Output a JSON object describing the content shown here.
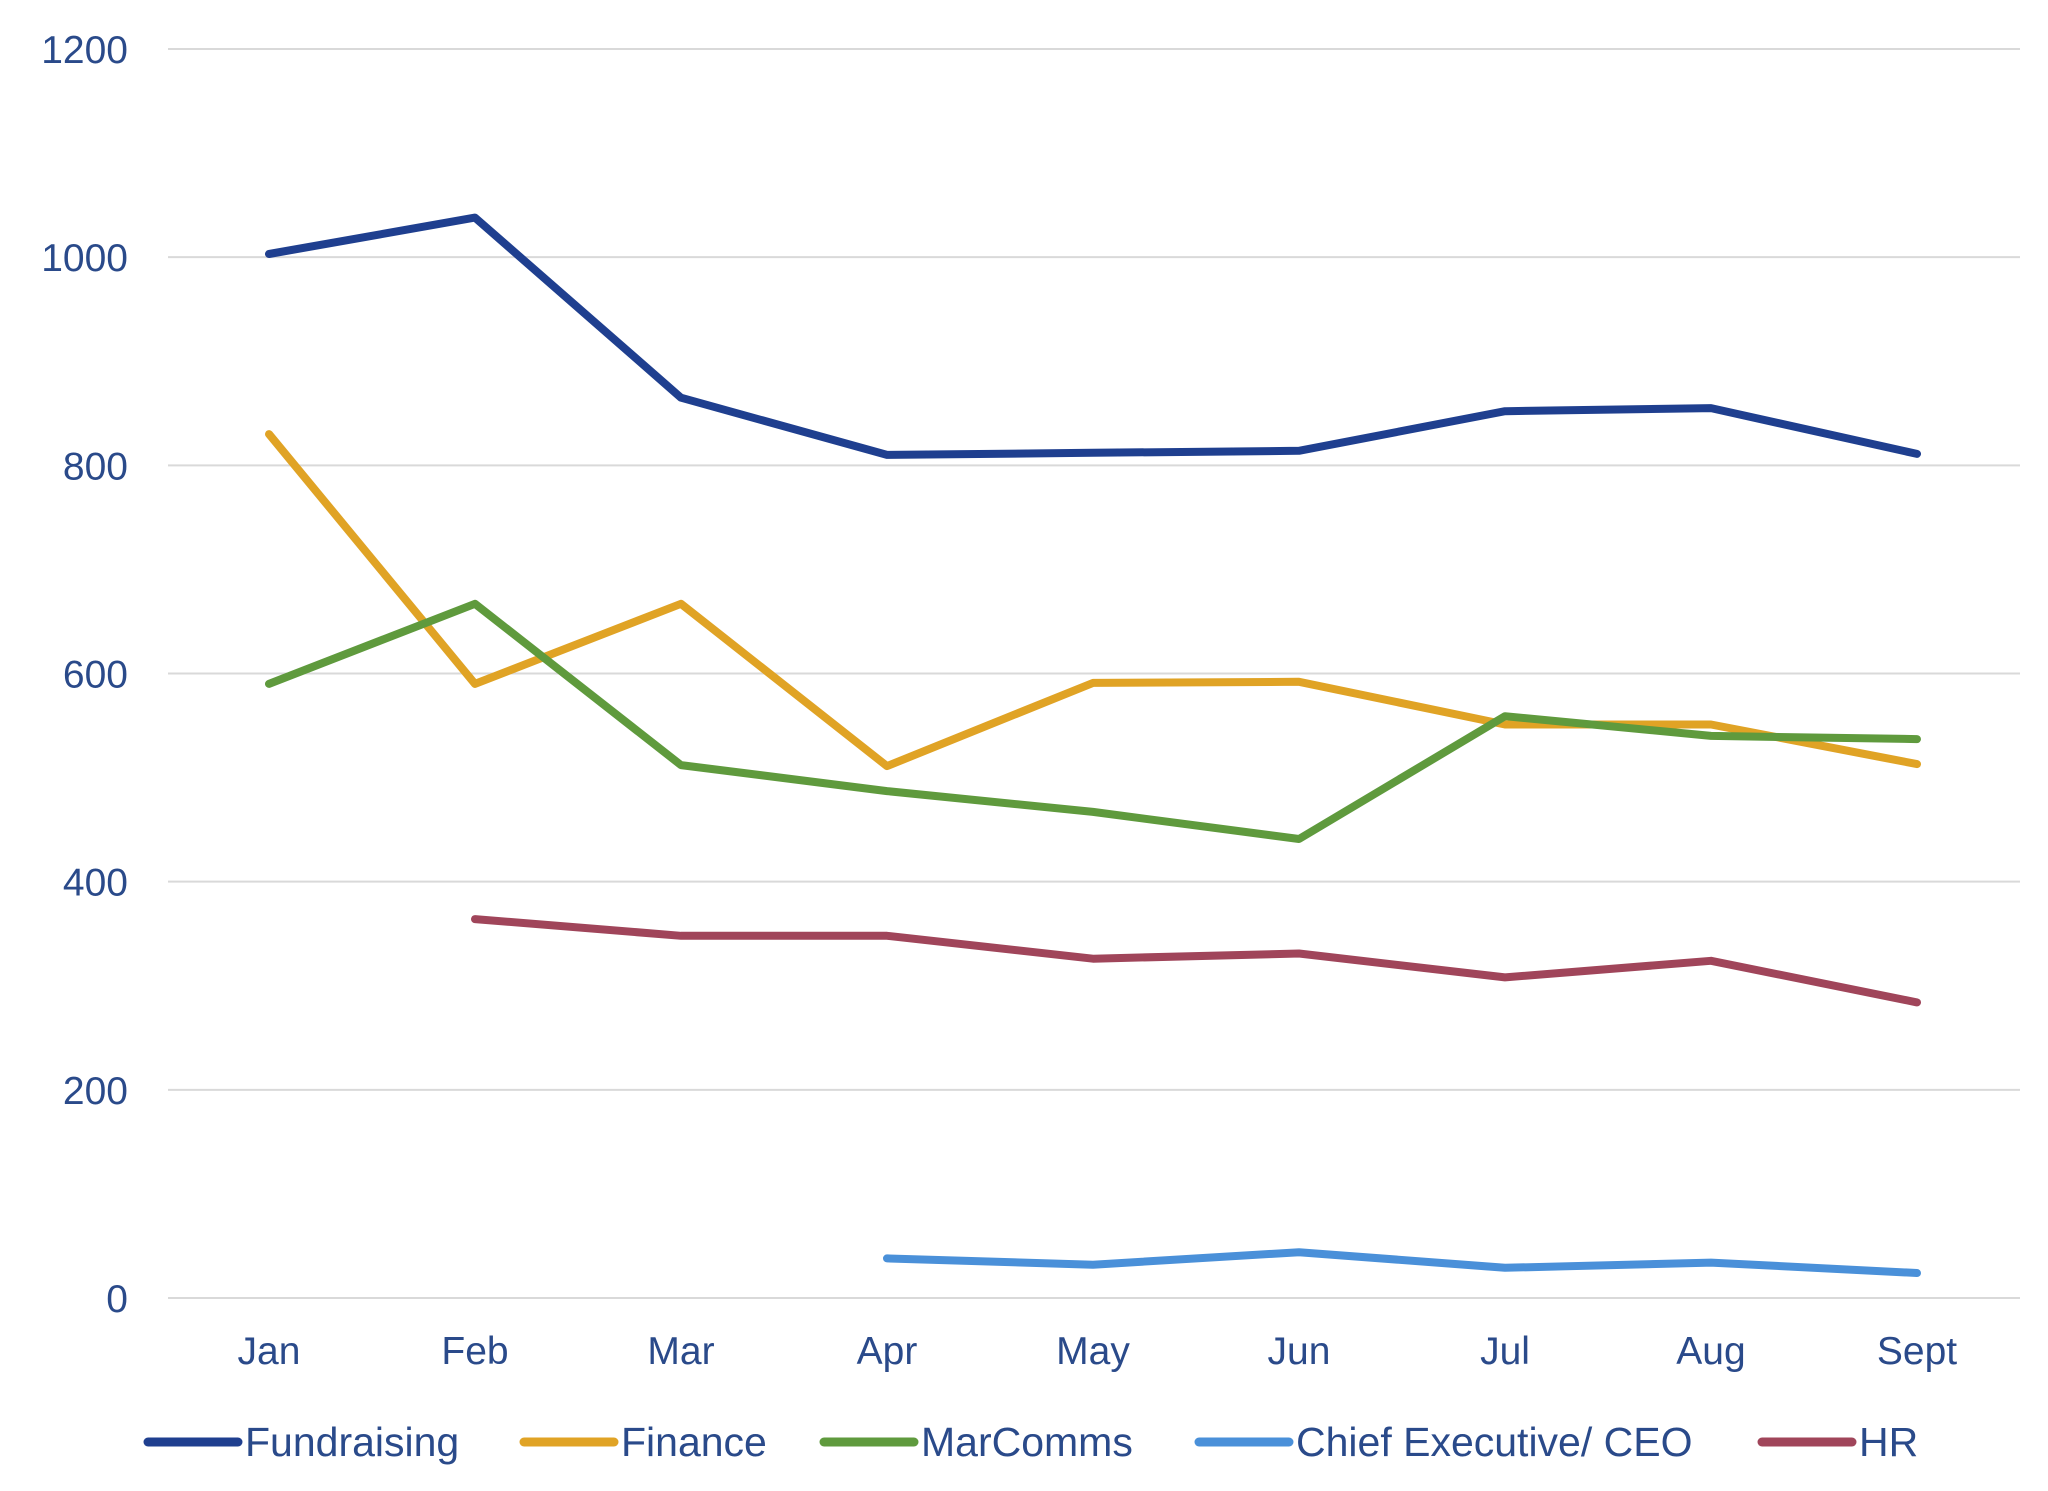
{
  "chart_data": {
    "type": "line",
    "categories": [
      "Jan",
      "Feb",
      "Mar",
      "Apr",
      "May",
      "Jun",
      "Jul",
      "Aug",
      "Sept"
    ],
    "ylim": [
      0,
      1200
    ],
    "yticks": [
      0,
      200,
      400,
      600,
      800,
      1000,
      1200
    ],
    "grid": true,
    "legend_position": "bottom",
    "series": [
      {
        "name": "Fundraising",
        "color": "#1f3f8f",
        "values": [
          1003,
          1038,
          865,
          810,
          812,
          814,
          852,
          855,
          811
        ]
      },
      {
        "name": "Finance",
        "color": "#e0a325",
        "values": [
          830,
          590,
          667,
          511,
          591,
          592,
          551,
          551,
          513
        ]
      },
      {
        "name": "MarComms",
        "color": "#5f9a3d",
        "values": [
          590,
          667,
          512,
          487,
          467,
          441,
          559,
          540,
          537
        ]
      },
      {
        "name": "Chief Executive/ CEO",
        "color": "#4a90d9",
        "values": [
          null,
          null,
          null,
          38,
          32,
          44,
          29,
          34,
          24
        ]
      },
      {
        "name": "HR",
        "color": "#a0455a",
        "values": [
          null,
          364,
          348,
          348,
          326,
          331,
          308,
          324,
          284
        ]
      }
    ]
  }
}
